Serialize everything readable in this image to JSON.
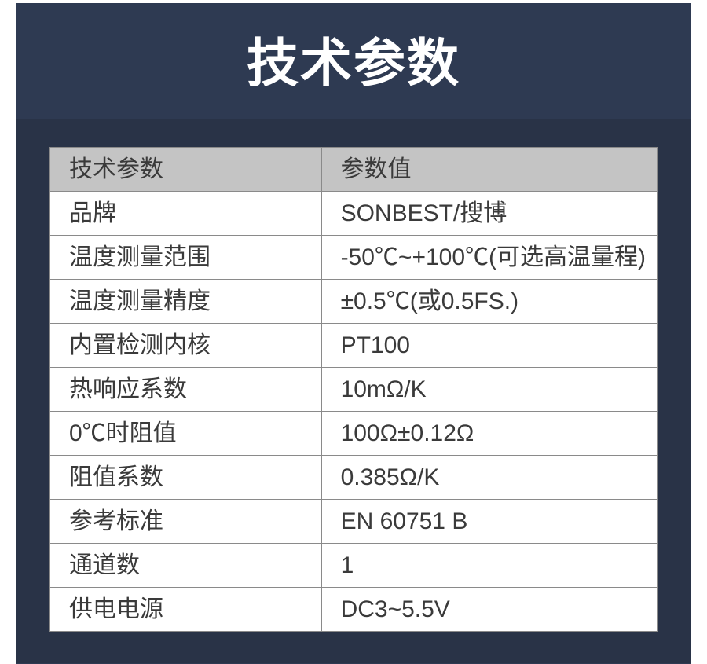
{
  "title": "技术参数",
  "colors": {
    "title_bg": "#2e3a52",
    "title_color": "#ffffff",
    "panel_bg": "#293347",
    "header_bg": "#c4c4c4",
    "border_color": "#8a8a8a",
    "text_color": "#3a3a3a"
  },
  "table": {
    "headers": {
      "param": "技术参数",
      "value": "参数值"
    },
    "rows": [
      {
        "param": "品牌",
        "value": "SONBEST/搜博"
      },
      {
        "param": "温度测量范围",
        "value": "-50℃~+100℃(可选高温量程)"
      },
      {
        "param": "温度测量精度",
        "value": "±0.5℃(或0.5FS.)"
      },
      {
        "param": "内置检测内核",
        "value": "PT100"
      },
      {
        "param": "热响应系数",
        "value": "10mΩ/K"
      },
      {
        "param": "0℃时阻值",
        "value": "100Ω±0.12Ω"
      },
      {
        "param": "阻值系数",
        "value": "0.385Ω/K"
      },
      {
        "param": "参考标准",
        "value": "EN 60751 B"
      },
      {
        "param": "通道数",
        "value": "1"
      },
      {
        "param": "供电电源",
        "value": "DC3~5.5V"
      }
    ]
  }
}
